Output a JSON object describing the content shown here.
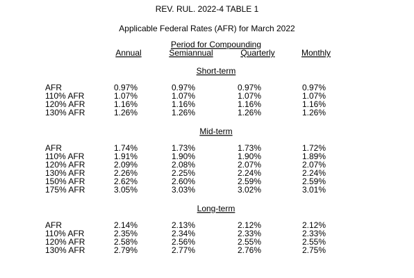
{
  "header": {
    "title": "REV. RUL. 2022-4 TABLE 1",
    "subtitle": "Applicable Federal Rates (AFR) for March 2022",
    "period_label": "Period for Compounding",
    "columns": [
      "Annual",
      "Semiannual",
      "Quarterly",
      "Monthly"
    ]
  },
  "sections": [
    {
      "title": "Short-term",
      "rows": [
        {
          "label": "AFR",
          "values": [
            "0.97%",
            "0.97%",
            "0.97%",
            "0.97%"
          ]
        },
        {
          "label": "110% AFR",
          "values": [
            "1.07%",
            "1.07%",
            "1.07%",
            "1.07%"
          ]
        },
        {
          "label": "120% AFR",
          "values": [
            "1.16%",
            "1.16%",
            "1.16%",
            "1.16%"
          ]
        },
        {
          "label": "130% AFR",
          "values": [
            "1.26%",
            "1.26%",
            "1.26%",
            "1.26%"
          ]
        }
      ]
    },
    {
      "title": "Mid-term",
      "rows": [
        {
          "label": "AFR",
          "values": [
            "1.74%",
            "1.73%",
            "1.73%",
            "1.72%"
          ]
        },
        {
          "label": "110% AFR",
          "values": [
            "1.91%",
            "1.90%",
            "1.90%",
            "1.89%"
          ]
        },
        {
          "label": "120% AFR",
          "values": [
            "2.09%",
            "2.08%",
            "2.07%",
            "2.07%"
          ]
        },
        {
          "label": "130% AFR",
          "values": [
            "2.26%",
            "2.25%",
            "2.24%",
            "2.24%"
          ]
        },
        {
          "label": "150% AFR",
          "values": [
            "2.62%",
            "2.60%",
            "2.59%",
            "2.59%"
          ]
        },
        {
          "label": "175% AFR",
          "values": [
            "3.05%",
            "3.03%",
            "3.02%",
            "3.01%"
          ]
        }
      ]
    },
    {
      "title": "Long-term",
      "rows": [
        {
          "label": "AFR",
          "values": [
            "2.14%",
            "2.13%",
            "2.12%",
            "2.12%"
          ]
        },
        {
          "label": "110% AFR",
          "values": [
            "2.35%",
            "2.34%",
            "2.33%",
            "2.33%"
          ]
        },
        {
          "label": "120% AFR",
          "values": [
            "2.58%",
            "2.56%",
            "2.55%",
            "2.55%"
          ]
        },
        {
          "label": "130% AFR",
          "values": [
            "2.79%",
            "2.77%",
            "2.76%",
            "2.75%"
          ]
        }
      ]
    }
  ]
}
